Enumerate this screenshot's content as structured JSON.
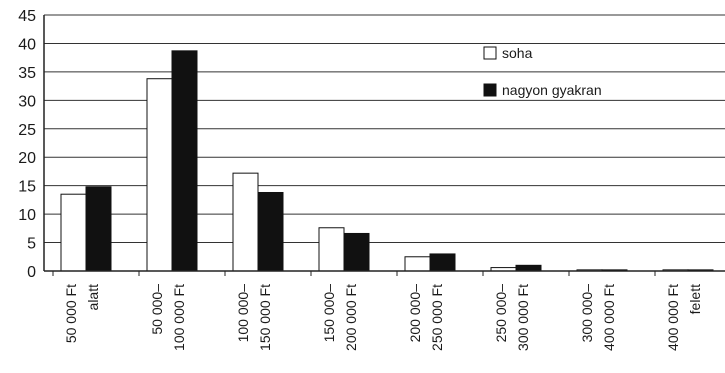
{
  "chart_data": {
    "type": "bar",
    "categories": [
      [
        "50 000 Ft",
        "alatt"
      ],
      [
        "50 000–",
        "100 000 Ft"
      ],
      [
        "100 000–",
        "150 000 Ft"
      ],
      [
        "150 000–",
        "200 000 Ft"
      ],
      [
        "200 000–",
        "250 000 Ft"
      ],
      [
        "250 000–",
        "300 000 Ft"
      ],
      [
        "300 000–",
        "400 000 Ft"
      ],
      [
        "400 000 Ft",
        "felett"
      ]
    ],
    "series": [
      {
        "name": "soha",
        "color": "#ffffff",
        "values": [
          13.5,
          33.8,
          17.2,
          7.6,
          2.5,
          0.6,
          0.2,
          0.2
        ]
      },
      {
        "name": "nagyon gyakran",
        "color": "#111111",
        "values": [
          14.8,
          38.7,
          13.8,
          6.6,
          3.0,
          1.0,
          0.2,
          0.2
        ]
      }
    ],
    "ylim": [
      0,
      45
    ],
    "yticks": [
      0,
      5,
      10,
      15,
      20,
      25,
      30,
      35,
      40,
      45
    ],
    "grid": true,
    "legend": "top-right"
  }
}
